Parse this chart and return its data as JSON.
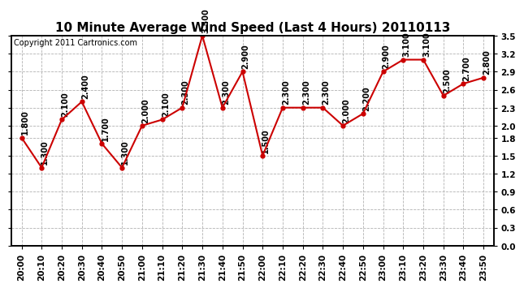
{
  "title": "10 Minute Average Wind Speed (Last 4 Hours) 20110113",
  "copyright": "Copyright 2011 Cartronics.com",
  "x_labels": [
    "20:00",
    "20:10",
    "20:20",
    "20:30",
    "20:40",
    "20:50",
    "21:00",
    "21:10",
    "21:20",
    "21:30",
    "21:40",
    "21:50",
    "22:00",
    "22:10",
    "22:20",
    "22:30",
    "22:40",
    "22:50",
    "23:00",
    "23:10",
    "23:20",
    "23:30",
    "23:40",
    "23:50"
  ],
  "y_values": [
    1.8,
    1.3,
    2.1,
    2.4,
    1.7,
    1.3,
    2.0,
    2.1,
    2.3,
    3.5,
    2.3,
    2.9,
    1.5,
    2.3,
    2.3,
    2.3,
    2.0,
    2.2,
    2.9,
    3.1,
    3.1,
    2.5,
    2.7,
    2.8
  ],
  "line_color": "#cc0000",
  "marker_color": "#cc0000",
  "bg_color": "#ffffff",
  "grid_color": "#aaaaaa",
  "ylim": [
    0.0,
    3.5
  ],
  "yticks": [
    0.0,
    0.3,
    0.6,
    0.9,
    1.2,
    1.5,
    1.8,
    2.0,
    2.3,
    2.6,
    2.9,
    3.2,
    3.5
  ],
  "title_fontsize": 11,
  "copyright_fontsize": 7,
  "label_fontsize": 7,
  "tick_fontsize": 7.5
}
